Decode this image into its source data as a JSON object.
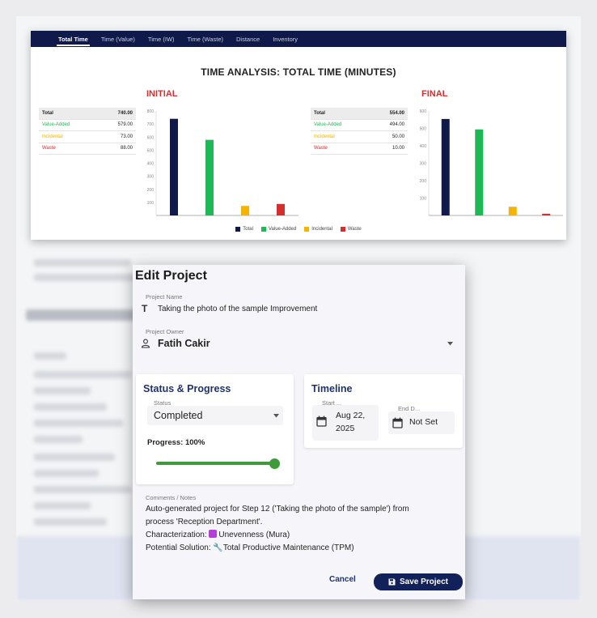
{
  "tabs": [
    "Total Time",
    "Time (Value)",
    "Time (IW)",
    "Time (Waste)",
    "Distance",
    "Inventory"
  ],
  "active_tab": "Total Time",
  "chart_title": "TIME ANALYSIS: TOTAL TIME (MINUTES)",
  "colors": {
    "total": "#0f1a4a",
    "value_added": "#1db954",
    "incidental": "#f5b400",
    "waste": "#d32f2f",
    "heading": "#d32f2f",
    "accent": "#13215a",
    "progress": "#3f9a3b"
  },
  "chart_data": [
    {
      "type": "bar",
      "title": "INITIAL",
      "categories": [
        "Total",
        "Value-Added",
        "Incidental",
        "Waste"
      ],
      "values": [
        740.0,
        579.0,
        73.0,
        88.0
      ],
      "ylim": [
        0,
        800
      ],
      "yticks": [
        "100",
        "200",
        "300",
        "400",
        "500",
        "600",
        "700",
        "800"
      ],
      "table": [
        {
          "label": "Total",
          "value": "740.00"
        },
        {
          "label": "Value-Added",
          "value": "579.00"
        },
        {
          "label": "Incidental",
          "value": "73.00"
        },
        {
          "label": "Waste",
          "value": "88.00"
        }
      ]
    },
    {
      "type": "bar",
      "title": "FINAL",
      "categories": [
        "Total",
        "Value-Added",
        "Incidental",
        "Waste"
      ],
      "values": [
        554.0,
        494.0,
        50.0,
        10.0
      ],
      "ylim": [
        0,
        600
      ],
      "yticks": [
        "100",
        "200",
        "300",
        "400",
        "500",
        "600"
      ],
      "table": [
        {
          "label": "Total",
          "value": "554.00"
        },
        {
          "label": "Value-Added",
          "value": "494.00"
        },
        {
          "label": "Incidental",
          "value": "50.00"
        },
        {
          "label": "Waste",
          "value": "10.00"
        }
      ]
    }
  ],
  "legend": [
    "Total",
    "Value-Added",
    "Incidental",
    "Waste"
  ],
  "modal": {
    "title": "Edit Project",
    "project_name_label": "Project Name",
    "project_name": "Taking the photo of the sample Improvement",
    "project_owner_label": "Project Owner",
    "project_owner": "Fatih Cakir",
    "status_card_title": "Status & Progress",
    "status_label": "Status",
    "status_value": "Completed",
    "progress_label": "Progress: 100%",
    "progress_value": 100,
    "timeline_title": "Timeline",
    "start_label": "Start ...",
    "start_value_line1": "Aug 22,",
    "start_value_line2": "2025",
    "end_label": "End D...",
    "end_value": "Not Set",
    "comments_label": "Comments / Notes",
    "notes_line1": "Auto-generated project for Step 12 ('Taking the photo of the sample') from",
    "notes_line2": "process 'Reception Department'.",
    "notes_line3_prefix": "Characterization: ",
    "notes_line3_value": "Unevenness (Mura)",
    "notes_line4_prefix": "Potential Solution: ",
    "notes_line4_value": "Total Productive Maintenance (TPM)",
    "cancel_label": "Cancel",
    "save_label": "Save Project"
  }
}
